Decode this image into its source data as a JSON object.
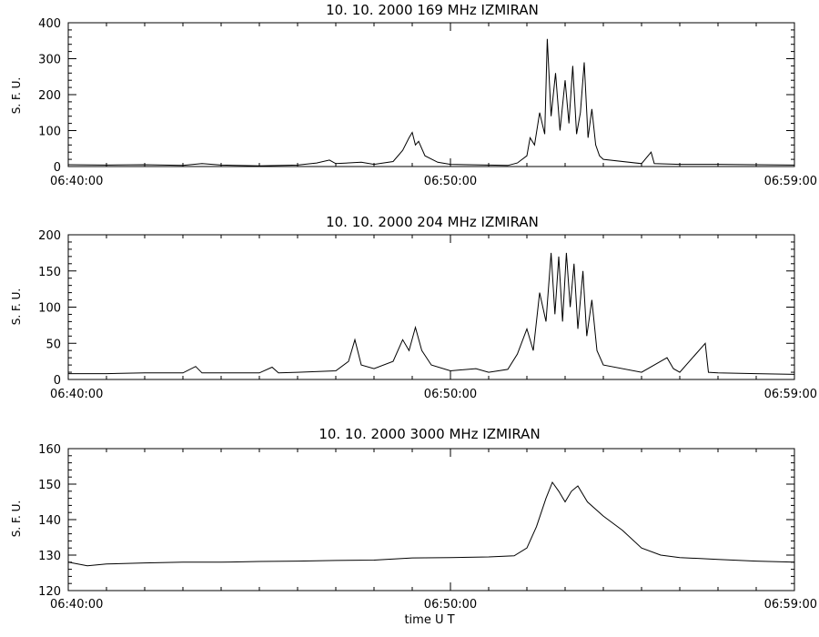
{
  "figure": {
    "xlabel": "time  U T",
    "colors": {
      "background": "#ffffff",
      "ink": "#000000"
    }
  },
  "chart_data": [
    {
      "type": "line",
      "title": "10.  10.  2000    169  MHz    IZMIRAN",
      "ylabel": "S. F. U.",
      "xlabel": "",
      "xlim": [
        "06:40:00",
        "06:59:00"
      ],
      "xticks": [
        "06:40:00",
        "06:50:00",
        "06:59:00"
      ],
      "ylim": [
        0,
        400
      ],
      "yticks": [
        0,
        100,
        200,
        300,
        400
      ],
      "grid": false,
      "series": [
        {
          "values": [
            [
              "06:40:00",
              5
            ],
            [
              "06:41:00",
              4
            ],
            [
              "06:42:00",
              5
            ],
            [
              "06:43:00",
              3
            ],
            [
              "06:43:30",
              8
            ],
            [
              "06:44:00",
              4
            ],
            [
              "06:45:00",
              2
            ],
            [
              "06:46:00",
              4
            ],
            [
              "06:46:30",
              10
            ],
            [
              "06:46:50",
              18
            ],
            [
              "06:47:00",
              8
            ],
            [
              "06:47:40",
              12
            ],
            [
              "06:48:00",
              6
            ],
            [
              "06:48:30",
              14
            ],
            [
              "06:48:45",
              45
            ],
            [
              "06:48:55",
              80
            ],
            [
              "06:49:00",
              95
            ],
            [
              "06:49:05",
              60
            ],
            [
              "06:49:10",
              70
            ],
            [
              "06:49:20",
              30
            ],
            [
              "06:49:40",
              12
            ],
            [
              "06:50:00",
              6
            ],
            [
              "06:51:00",
              4
            ],
            [
              "06:51:30",
              3
            ],
            [
              "06:51:45",
              10
            ],
            [
              "06:52:00",
              30
            ],
            [
              "06:52:05",
              80
            ],
            [
              "06:52:12",
              60
            ],
            [
              "06:52:20",
              150
            ],
            [
              "06:52:28",
              90
            ],
            [
              "06:52:32",
              355
            ],
            [
              "06:52:38",
              140
            ],
            [
              "06:52:45",
              260
            ],
            [
              "06:52:52",
              100
            ],
            [
              "06:53:00",
              240
            ],
            [
              "06:53:06",
              120
            ],
            [
              "06:53:12",
              280
            ],
            [
              "06:53:18",
              90
            ],
            [
              "06:53:24",
              150
            ],
            [
              "06:53:30",
              290
            ],
            [
              "06:53:36",
              80
            ],
            [
              "06:53:42",
              160
            ],
            [
              "06:53:48",
              60
            ],
            [
              "06:53:54",
              30
            ],
            [
              "06:54:00",
              20
            ],
            [
              "06:55:00",
              8
            ],
            [
              "06:55:15",
              40
            ],
            [
              "06:55:20",
              8
            ],
            [
              "06:56:00",
              6
            ],
            [
              "06:57:00",
              6
            ],
            [
              "06:58:00",
              5
            ],
            [
              "06:59:00",
              4
            ]
          ]
        }
      ]
    },
    {
      "type": "line",
      "title": "10.  10.  2000    204  MHz    IZMIRAN",
      "ylabel": "S. F. U.",
      "xlabel": "",
      "xlim": [
        "06:40:00",
        "06:59:00"
      ],
      "xticks": [
        "06:40:00",
        "06:50:00",
        "06:59:00"
      ],
      "ylim": [
        0,
        200
      ],
      "yticks": [
        0,
        50,
        100,
        150,
        200
      ],
      "grid": false,
      "series": [
        {
          "values": [
            [
              "06:40:00",
              8
            ],
            [
              "06:41:00",
              8
            ],
            [
              "06:42:00",
              9
            ],
            [
              "06:43:00",
              9
            ],
            [
              "06:43:20",
              18
            ],
            [
              "06:43:30",
              9
            ],
            [
              "06:44:00",
              9
            ],
            [
              "06:45:00",
              9
            ],
            [
              "06:45:20",
              17
            ],
            [
              "06:45:30",
              9
            ],
            [
              "06:46:00",
              10
            ],
            [
              "06:47:00",
              12
            ],
            [
              "06:47:20",
              25
            ],
            [
              "06:47:30",
              55
            ],
            [
              "06:47:40",
              20
            ],
            [
              "06:48:00",
              15
            ],
            [
              "06:48:30",
              25
            ],
            [
              "06:48:45",
              55
            ],
            [
              "06:48:55",
              40
            ],
            [
              "06:49:05",
              72
            ],
            [
              "06:49:15",
              40
            ],
            [
              "06:49:30",
              20
            ],
            [
              "06:50:00",
              12
            ],
            [
              "06:50:40",
              15
            ],
            [
              "06:51:00",
              10
            ],
            [
              "06:51:30",
              14
            ],
            [
              "06:51:45",
              35
            ],
            [
              "06:52:00",
              70
            ],
            [
              "06:52:10",
              40
            ],
            [
              "06:52:20",
              120
            ],
            [
              "06:52:30",
              80
            ],
            [
              "06:52:38",
              175
            ],
            [
              "06:52:44",
              90
            ],
            [
              "06:52:50",
              170
            ],
            [
              "06:52:56",
              80
            ],
            [
              "06:53:02",
              175
            ],
            [
              "06:53:08",
              100
            ],
            [
              "06:53:14",
              160
            ],
            [
              "06:53:20",
              70
            ],
            [
              "06:53:28",
              150
            ],
            [
              "06:53:34",
              60
            ],
            [
              "06:53:42",
              110
            ],
            [
              "06:53:50",
              40
            ],
            [
              "06:54:00",
              20
            ],
            [
              "06:55:00",
              10
            ],
            [
              "06:55:40",
              30
            ],
            [
              "06:55:50",
              15
            ],
            [
              "06:56:00",
              10
            ],
            [
              "06:56:40",
              50
            ],
            [
              "06:56:45",
              10
            ],
            [
              "06:57:00",
              9
            ],
            [
              "06:58:00",
              8
            ],
            [
              "06:59:00",
              7
            ]
          ]
        }
      ]
    },
    {
      "type": "line",
      "title": "10.  10.  2000    3000  MHz    IZMIRAN",
      "ylabel": "S. F. U.",
      "xlabel": "time  U T",
      "xlim": [
        "06:40:00",
        "06:59:00"
      ],
      "xticks": [
        "06:40:00",
        "06:50:00",
        "06:59:00"
      ],
      "ylim": [
        120,
        160
      ],
      "yticks": [
        120,
        130,
        140,
        150,
        160
      ],
      "grid": false,
      "series": [
        {
          "values": [
            [
              "06:40:00",
              128
            ],
            [
              "06:40:30",
              127
            ],
            [
              "06:41:00",
              127.5
            ],
            [
              "06:42:00",
              127.8
            ],
            [
              "06:43:00",
              128
            ],
            [
              "06:44:00",
              128
            ],
            [
              "06:45:00",
              128.2
            ],
            [
              "06:46:00",
              128.3
            ],
            [
              "06:47:00",
              128.5
            ],
            [
              "06:48:00",
              128.6
            ],
            [
              "06:49:00",
              129.2
            ],
            [
              "06:50:00",
              129.3
            ],
            [
              "06:51:00",
              129.5
            ],
            [
              "06:51:40",
              129.8
            ],
            [
              "06:52:00",
              132
            ],
            [
              "06:52:15",
              138
            ],
            [
              "06:52:30",
              146
            ],
            [
              "06:52:40",
              150.5
            ],
            [
              "06:52:50",
              148
            ],
            [
              "06:53:00",
              145
            ],
            [
              "06:53:10",
              148
            ],
            [
              "06:53:20",
              149.5
            ],
            [
              "06:53:35",
              145
            ],
            [
              "06:54:00",
              141
            ],
            [
              "06:54:30",
              137
            ],
            [
              "06:55:00",
              132
            ],
            [
              "06:55:30",
              130
            ],
            [
              "06:56:00",
              129.3
            ],
            [
              "06:57:00",
              128.8
            ],
            [
              "06:58:00",
              128.3
            ],
            [
              "06:59:00",
              128
            ]
          ]
        }
      ]
    }
  ]
}
